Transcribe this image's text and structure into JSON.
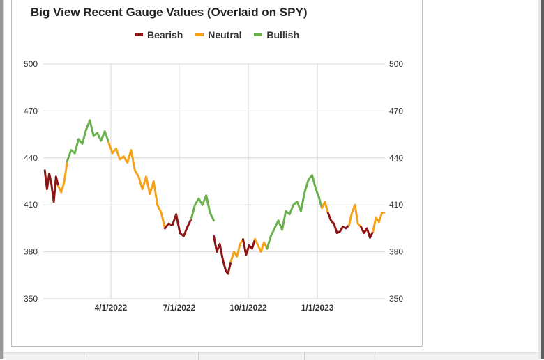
{
  "colors": {
    "bearish": "#8b1414",
    "neutral": "#f5a21a",
    "bullish": "#6ab04c",
    "grid": "#d6d6d6",
    "axis_text": "#333333"
  },
  "chart_data": {
    "type": "line",
    "title": "Big View Recent Gauge Values (Overlaid on SPY)",
    "legend": {
      "placement": "top-center",
      "items": [
        {
          "key": "bearish",
          "label": "Bearish"
        },
        {
          "key": "neutral",
          "label": "Neutral"
        },
        {
          "key": "bullish",
          "label": "Bullish"
        }
      ]
    },
    "xlabel": "",
    "ylabel": "",
    "ylim": [
      350,
      500
    ],
    "y_ticks": [
      350,
      380,
      410,
      440,
      470,
      500
    ],
    "y_axis_both_sides": true,
    "x_ticks": [
      "4/1/2022",
      "7/1/2022",
      "10/1/2022",
      "1/1/2023"
    ],
    "x_range": [
      "2022-01-03",
      "2023-03-31"
    ],
    "grid": true,
    "series": [
      {
        "name": "Bearish",
        "color_key": "bearish",
        "points": [
          [
            "2022-01-03",
            432
          ],
          [
            "2022-01-06",
            420
          ],
          [
            "2022-01-09",
            430
          ],
          [
            "2022-01-12",
            423
          ],
          [
            "2022-01-15",
            412
          ],
          [
            "2022-01-18",
            428
          ],
          [
            "2022-01-21",
            422
          ]
        ]
      },
      {
        "name": "Neutral",
        "color_key": "neutral",
        "points": [
          [
            "2022-01-21",
            422
          ],
          [
            "2022-01-25",
            418
          ],
          [
            "2022-01-29",
            425
          ],
          [
            "2022-02-02",
            438
          ]
        ]
      },
      {
        "name": "Bullish",
        "color_key": "bullish",
        "points": [
          [
            "2022-02-02",
            438
          ],
          [
            "2022-02-07",
            445
          ],
          [
            "2022-02-12",
            443
          ],
          [
            "2022-02-17",
            452
          ],
          [
            "2022-02-22",
            449
          ],
          [
            "2022-02-27",
            458
          ],
          [
            "2022-03-04",
            464
          ],
          [
            "2022-03-09",
            454
          ],
          [
            "2022-03-14",
            456
          ],
          [
            "2022-03-19",
            451
          ],
          [
            "2022-03-24",
            457
          ],
          [
            "2022-03-29",
            450
          ]
        ]
      },
      {
        "name": "Neutral",
        "color_key": "neutral",
        "points": [
          [
            "2022-03-29",
            450
          ],
          [
            "2022-04-03",
            443
          ],
          [
            "2022-04-08",
            446
          ],
          [
            "2022-04-13",
            439
          ],
          [
            "2022-04-18",
            441
          ],
          [
            "2022-04-23",
            437
          ],
          [
            "2022-04-28",
            445
          ],
          [
            "2022-05-03",
            432
          ],
          [
            "2022-05-08",
            428
          ],
          [
            "2022-05-13",
            420
          ],
          [
            "2022-05-18",
            428
          ],
          [
            "2022-05-23",
            417
          ],
          [
            "2022-05-28",
            425
          ],
          [
            "2022-06-02",
            410
          ],
          [
            "2022-06-07",
            405
          ],
          [
            "2022-06-12",
            395
          ]
        ]
      },
      {
        "name": "Bearish",
        "color_key": "bearish",
        "points": [
          [
            "2022-06-12",
            395
          ],
          [
            "2022-06-17",
            398
          ],
          [
            "2022-06-22",
            397
          ],
          [
            "2022-06-27",
            404
          ],
          [
            "2022-07-02",
            392
          ],
          [
            "2022-07-07",
            390
          ],
          [
            "2022-07-12",
            396
          ],
          [
            "2022-07-17",
            401
          ]
        ]
      },
      {
        "name": "Bullish",
        "color_key": "bullish",
        "points": [
          [
            "2022-07-17",
            401
          ],
          [
            "2022-07-22",
            410
          ],
          [
            "2022-07-27",
            414
          ],
          [
            "2022-08-01",
            410
          ],
          [
            "2022-08-06",
            416
          ],
          [
            "2022-08-11",
            405
          ],
          [
            "2022-08-16",
            400
          ]
        ]
      },
      {
        "name": "Bearish",
        "color_key": "bearish",
        "points": [
          [
            "2022-08-16",
            390
          ],
          [
            "2022-08-20",
            380
          ],
          [
            "2022-08-24",
            385
          ],
          [
            "2022-08-28",
            375
          ],
          [
            "2022-09-01",
            368
          ],
          [
            "2022-09-04",
            366
          ],
          [
            "2022-09-08",
            374
          ]
        ]
      },
      {
        "name": "Neutral",
        "color_key": "neutral",
        "points": [
          [
            "2022-09-08",
            374
          ],
          [
            "2022-09-12",
            380
          ],
          [
            "2022-09-16",
            377
          ],
          [
            "2022-09-20",
            385
          ],
          [
            "2022-09-24",
            388
          ]
        ]
      },
      {
        "name": "Bearish",
        "color_key": "bearish",
        "points": [
          [
            "2022-09-24",
            388
          ],
          [
            "2022-09-28",
            378
          ],
          [
            "2022-10-02",
            384
          ],
          [
            "2022-10-06",
            382
          ],
          [
            "2022-10-10",
            388
          ]
        ]
      },
      {
        "name": "Neutral",
        "color_key": "neutral",
        "points": [
          [
            "2022-10-10",
            388
          ],
          [
            "2022-10-14",
            384
          ],
          [
            "2022-10-18",
            380
          ],
          [
            "2022-10-22",
            386
          ],
          [
            "2022-10-26",
            382
          ]
        ]
      },
      {
        "name": "Bullish",
        "color_key": "bullish",
        "points": [
          [
            "2022-10-26",
            382
          ],
          [
            "2022-10-31",
            390
          ],
          [
            "2022-11-05",
            395
          ],
          [
            "2022-11-10",
            400
          ],
          [
            "2022-11-15",
            394
          ],
          [
            "2022-11-20",
            406
          ],
          [
            "2022-11-25",
            404
          ],
          [
            "2022-11-30",
            410
          ],
          [
            "2022-12-05",
            412
          ],
          [
            "2022-12-10",
            406
          ],
          [
            "2022-12-15",
            418
          ],
          [
            "2022-12-20",
            426
          ],
          [
            "2022-12-25",
            429
          ],
          [
            "2022-12-30",
            420
          ],
          [
            "2023-01-03",
            415
          ],
          [
            "2023-01-07",
            408
          ]
        ]
      },
      {
        "name": "Neutral",
        "color_key": "neutral",
        "points": [
          [
            "2023-01-07",
            408
          ],
          [
            "2023-01-11",
            412
          ],
          [
            "2023-01-15",
            405
          ]
        ]
      },
      {
        "name": "Bearish",
        "color_key": "bearish",
        "points": [
          [
            "2023-01-15",
            405
          ],
          [
            "2023-01-19",
            400
          ],
          [
            "2023-01-23",
            398
          ],
          [
            "2023-01-27",
            392
          ],
          [
            "2023-01-31",
            393
          ],
          [
            "2023-02-04",
            396
          ],
          [
            "2023-02-08",
            395
          ],
          [
            "2023-02-12",
            397
          ]
        ]
      },
      {
        "name": "Neutral",
        "color_key": "neutral",
        "points": [
          [
            "2023-02-12",
            397
          ],
          [
            "2023-02-16",
            405
          ],
          [
            "2023-02-20",
            410
          ],
          [
            "2023-02-24",
            398
          ],
          [
            "2023-02-28",
            396
          ]
        ]
      },
      {
        "name": "Bearish",
        "color_key": "bearish",
        "points": [
          [
            "2023-02-28",
            396
          ],
          [
            "2023-03-04",
            392
          ],
          [
            "2023-03-08",
            395
          ],
          [
            "2023-03-12",
            389
          ],
          [
            "2023-03-16",
            393
          ]
        ]
      },
      {
        "name": "Neutral",
        "color_key": "neutral",
        "points": [
          [
            "2023-03-16",
            393
          ],
          [
            "2023-03-20",
            402
          ],
          [
            "2023-03-24",
            399
          ],
          [
            "2023-03-28",
            405
          ],
          [
            "2023-03-31",
            405
          ]
        ]
      }
    ]
  }
}
